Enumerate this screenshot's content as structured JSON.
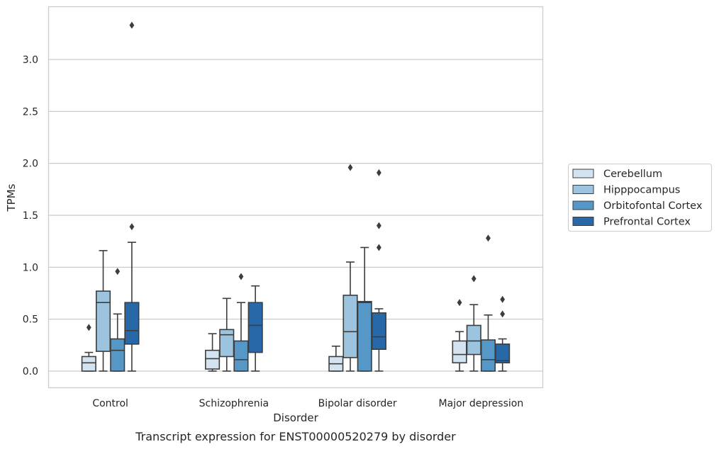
{
  "caption": "Transcript expression for ENST00000520279 by disorder",
  "chart_data": {
    "type": "box",
    "title": "",
    "xlabel": "Disorder",
    "ylabel": "TPMs",
    "ylim": [
      -0.16,
      3.5
    ],
    "yticks": [
      0.0,
      0.5,
      1.0,
      1.5,
      2.0,
      2.5,
      3.0
    ],
    "ytick_labels": [
      "0.0",
      "0.5",
      "1.0",
      "1.5",
      "2.0",
      "2.5",
      "3.0"
    ],
    "grid": "horizontal",
    "legend_position": "outside-right",
    "categories": [
      "Control",
      "Schizophrenia",
      "Bipolar disorder",
      "Major depression"
    ],
    "series": [
      {
        "name": "Cerebellum",
        "color": "#d4e3f2",
        "boxes": [
          {
            "whislo": 0.0,
            "q1": 0.0,
            "med": 0.08,
            "q3": 0.14,
            "whishi": 0.18,
            "fliers": [
              0.42
            ]
          },
          {
            "whislo": 0.0,
            "q1": 0.02,
            "med": 0.12,
            "q3": 0.2,
            "whishi": 0.36,
            "fliers": []
          },
          {
            "whislo": 0.0,
            "q1": 0.0,
            "med": 0.07,
            "q3": 0.14,
            "whishi": 0.24,
            "fliers": []
          },
          {
            "whislo": 0.0,
            "q1": 0.08,
            "med": 0.16,
            "q3": 0.29,
            "whishi": 0.38,
            "fliers": [
              0.66
            ]
          }
        ]
      },
      {
        "name": "Hipppocampus",
        "color": "#9cc4de",
        "boxes": [
          {
            "whislo": 0.0,
            "q1": 0.19,
            "med": 0.66,
            "q3": 0.77,
            "whishi": 1.16,
            "fliers": []
          },
          {
            "whislo": 0.0,
            "q1": 0.14,
            "med": 0.35,
            "q3": 0.4,
            "whishi": 0.7,
            "fliers": []
          },
          {
            "whislo": 0.0,
            "q1": 0.13,
            "med": 0.38,
            "q3": 0.73,
            "whishi": 1.05,
            "fliers": [
              1.96
            ]
          },
          {
            "whislo": 0.0,
            "q1": 0.16,
            "med": 0.29,
            "q3": 0.44,
            "whishi": 0.64,
            "fliers": [
              0.89
            ]
          }
        ]
      },
      {
        "name": "Orbitofontal Cortex",
        "color": "#5597c7",
        "boxes": [
          {
            "whislo": 0.0,
            "q1": 0.0,
            "med": 0.2,
            "q3": 0.31,
            "whishi": 0.55,
            "fliers": [
              0.96
            ]
          },
          {
            "whislo": 0.0,
            "q1": 0.0,
            "med": 0.11,
            "q3": 0.29,
            "whishi": 0.66,
            "fliers": [
              0.91
            ]
          },
          {
            "whislo": 0.0,
            "q1": 0.0,
            "med": 0.66,
            "q3": 0.67,
            "whishi": 1.19,
            "fliers": []
          },
          {
            "whislo": 0.0,
            "q1": 0.0,
            "med": 0.11,
            "q3": 0.3,
            "whishi": 0.54,
            "fliers": [
              1.28
            ]
          }
        ]
      },
      {
        "name": "Prefrontal Cortex",
        "color": "#2868a9",
        "boxes": [
          {
            "whislo": 0.0,
            "q1": 0.26,
            "med": 0.39,
            "q3": 0.66,
            "whishi": 1.24,
            "fliers": [
              1.39,
              3.33
            ]
          },
          {
            "whislo": 0.0,
            "q1": 0.18,
            "med": 0.44,
            "q3": 0.66,
            "whishi": 0.82,
            "fliers": []
          },
          {
            "whislo": 0.0,
            "q1": 0.21,
            "med": 0.33,
            "q3": 0.56,
            "whishi": 0.6,
            "fliers": [
              1.19,
              1.4,
              1.91
            ]
          },
          {
            "whislo": 0.0,
            "q1": 0.08,
            "med": 0.1,
            "q3": 0.26,
            "whishi": 0.31,
            "fliers": [
              0.55,
              0.69
            ]
          }
        ]
      }
    ]
  }
}
